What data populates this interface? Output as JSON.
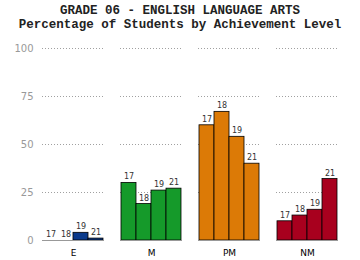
{
  "chart_data": {
    "type": "bar",
    "title": "GRADE 06 - ENGLISH LANGUAGE ARTS",
    "subtitle": "Percentage of Students by Achievement Level",
    "categories": [
      "E",
      "M",
      "PM",
      "NM"
    ],
    "colors": [
      "#0a3a8c",
      "#159a2a",
      "#dc7a06",
      "#a8001e"
    ],
    "series": [
      {
        "name": "17",
        "values": [
          0,
          30,
          60,
          10
        ]
      },
      {
        "name": "18",
        "values": [
          0,
          19,
          67,
          13
        ]
      },
      {
        "name": "19",
        "values": [
          4,
          26,
          54,
          16
        ]
      },
      {
        "name": "21",
        "values": [
          1,
          27,
          40,
          32
        ]
      }
    ],
    "ylim": [
      0,
      100
    ],
    "yticks": [
      0,
      25,
      50,
      75,
      100
    ],
    "grid": true
  }
}
